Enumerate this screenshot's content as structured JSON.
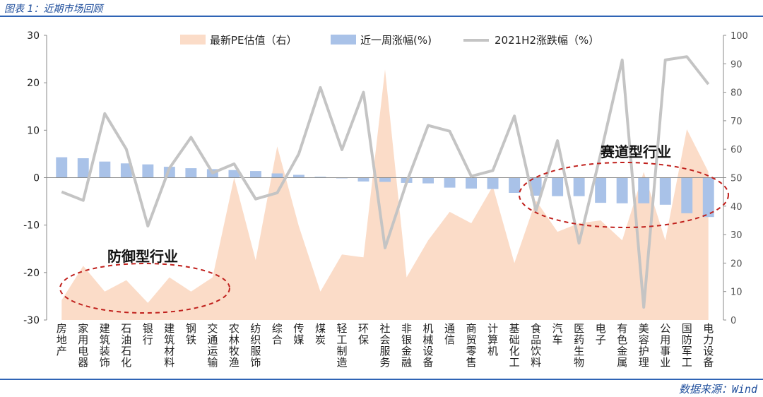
{
  "figure": {
    "title": "图表 1：近期市场回顾",
    "source": "数据来源：Wind"
  },
  "annotations": {
    "defensive": "防御型行业",
    "track": "赛道型行业"
  },
  "colors": {
    "pe_area": "#fbdcc8",
    "week_bar": "#a9c2e8",
    "h2_line": "#c4c4c4",
    "ellipse": "#c0201c",
    "title_blue": "#1f4e9c"
  },
  "chart_data": {
    "type": "bar",
    "categories": [
      "房地产",
      "家用电器",
      "建筑装饰",
      "石油石化",
      "银行",
      "建筑材料",
      "钢铁",
      "交通运输",
      "农林牧渔",
      "纺织服饰",
      "综合",
      "传媒",
      "煤炭",
      "轻工制造",
      "环保",
      "社会服务",
      "非银金融",
      "机械设备",
      "通信",
      "商贸零售",
      "计算机",
      "基础化工",
      "食品饮料",
      "汽车",
      "医药生物",
      "电子",
      "有色金属",
      "美容护理",
      "公用事业",
      "国防军工",
      "电力设备"
    ],
    "series": [
      {
        "name": "最新PE估值（右）",
        "kind": "area",
        "axis": "right",
        "values": [
          7,
          19,
          10,
          14,
          6,
          15,
          10,
          15,
          50,
          21,
          61,
          33,
          10,
          23,
          22,
          88,
          15,
          28,
          38,
          34,
          47,
          20,
          42,
          31,
          34,
          35,
          28,
          52,
          28,
          67,
          52
        ]
      },
      {
        "name": "近一周涨幅(%)",
        "kind": "bar",
        "axis": "left",
        "values": [
          4.3,
          4.1,
          3.4,
          3.0,
          2.8,
          2.3,
          2.0,
          1.8,
          1.6,
          1.4,
          0.9,
          0.6,
          0.2,
          -0.1,
          -0.8,
          -0.9,
          -1.1,
          -1.2,
          -2.1,
          -2.3,
          -2.4,
          -3.2,
          -3.8,
          -3.9,
          -3.9,
          -5.3,
          -5.4,
          -5.4,
          -5.7,
          -7.5,
          -8.3
        ]
      },
      {
        "name": "2021H2涨跌幅（%）",
        "kind": "line",
        "axis": "left",
        "values": [
          -3.0,
          -4.8,
          13.5,
          6.0,
          -10.2,
          2.0,
          8.5,
          1.0,
          2.9,
          -4.5,
          -3.2,
          5.0,
          19.0,
          5.9,
          18.0,
          -14.8,
          -1.0,
          11.0,
          9.8,
          0.3,
          1.5,
          13.0,
          -7.0,
          7.8,
          -13.8,
          5.0,
          24.8,
          -27.3,
          24.8,
          25.5,
          19.7
        ]
      }
    ],
    "ylim_left": [
      -30,
      30
    ],
    "yticks_left": [
      -30,
      -20,
      -10,
      0,
      10,
      20,
      30
    ],
    "ylim_right": [
      0,
      100
    ],
    "yticks_right": [
      0,
      10,
      20,
      30,
      40,
      50,
      60,
      70,
      80,
      90,
      100
    ],
    "legend_position": "top-center",
    "grid": false
  }
}
